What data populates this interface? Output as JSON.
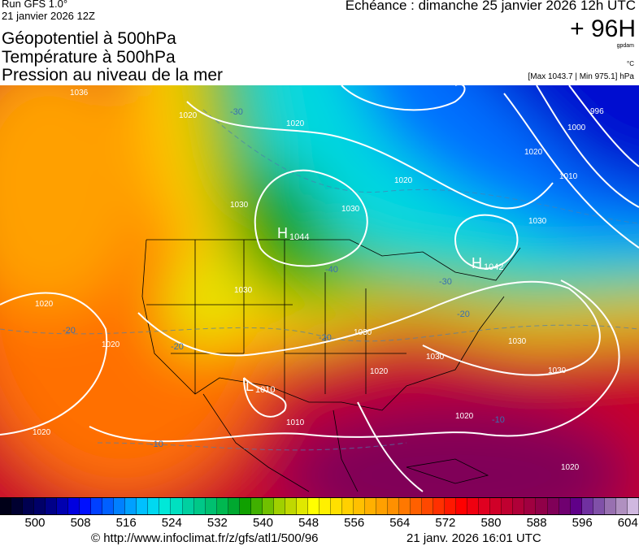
{
  "header": {
    "run": "Run GFS 1.0°",
    "run_date": "21 janvier 2026 12Z",
    "titles": [
      "Géopotentiel à 500hPa",
      "Température à 500hPa",
      "Pression au niveau de la mer"
    ],
    "echeance": "Echéance : dimanche 25 janvier 2026 12h UTC",
    "lead": "+ 96H",
    "unit_geopot": "gpdam",
    "unit_temp": "°C",
    "pressure_range": "[Max 1043.7 | Min 975.1] hPa"
  },
  "map": {
    "centers": [
      {
        "type": "H",
        "value": "1044"
      },
      {
        "type": "H",
        "value": "1042"
      },
      {
        "type": "L",
        "value": "1010"
      }
    ],
    "isobar_labels": [
      "1036",
      "1020",
      "1030",
      "1020",
      "1020",
      "1030",
      "1030",
      "1030",
      "1020",
      "1020",
      "1020",
      "1030",
      "1020",
      "1030",
      "1020",
      "1010",
      "1000",
      "996",
      "1030",
      "1020",
      "1010",
      "1030",
      "1020"
    ],
    "temp_labels": [
      "-30",
      "-40",
      "-20",
      "-20",
      "-10",
      "-20",
      "-20",
      "-10",
      "-30"
    ]
  },
  "colorbar": {
    "labels": [
      "500",
      "508",
      "516",
      "524",
      "532",
      "540",
      "548",
      "556",
      "564",
      "572",
      "580",
      "588",
      "596",
      "604"
    ],
    "colors": [
      "#000018",
      "#000030",
      "#000050",
      "#000068",
      "#000088",
      "#0000b0",
      "#0000e0",
      "#0010ff",
      "#0040ff",
      "#0060ff",
      "#0080ff",
      "#00a0ff",
      "#00c0ff",
      "#00d8f0",
      "#00e8d8",
      "#00e0c0",
      "#00d0a0",
      "#00c888",
      "#00c070",
      "#00b850",
      "#00a830",
      "#10a000",
      "#40b000",
      "#70c000",
      "#a0d000",
      "#c0d800",
      "#e0e800",
      "#ffff00",
      "#fff000",
      "#ffe000",
      "#ffd000",
      "#ffc000",
      "#ffb000",
      "#ffa000",
      "#ff9000",
      "#ff7800",
      "#ff6000",
      "#ff4800",
      "#ff3000",
      "#ff1800",
      "#ff0000",
      "#f00010",
      "#e00020",
      "#d00028",
      "#c00030",
      "#b00038",
      "#a00040",
      "#900048",
      "#800058",
      "#700070",
      "#600088",
      "#7030a0",
      "#8050a8",
      "#9870b0",
      "#b090c0",
      "#d0b8e0"
    ]
  },
  "footer": {
    "source": "© http://www.infoclimat.fr/z/gfs/atl1/500/96",
    "timestamp": "21 janv. 2026 16:01 UTC"
  }
}
